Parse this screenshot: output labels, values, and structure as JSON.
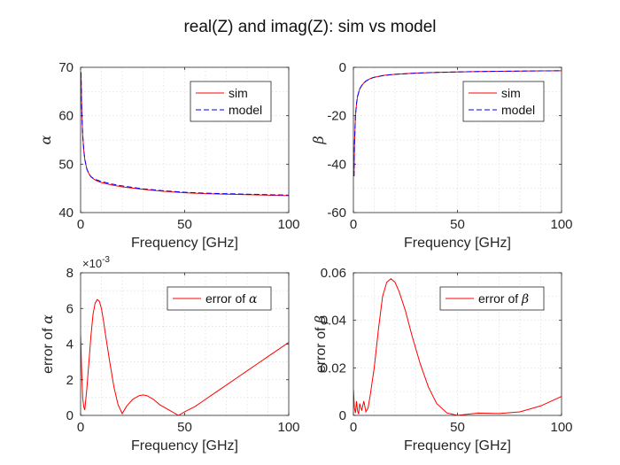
{
  "figure": {
    "title": "real(Z) and imag(Z): sim vs model",
    "colors": {
      "sim": "#ff0000",
      "model": "#0000ff",
      "error": "#ff0000",
      "grid": "#dcdcdc",
      "axis": "#262626"
    }
  },
  "chart_data": [
    {
      "id": "alpha",
      "type": "line",
      "xlabel": "Frequency [GHz]",
      "ylabel": "α",
      "ylabel_prefix": "",
      "xlim": [
        0,
        100
      ],
      "ylim": [
        40,
        70
      ],
      "xticks": [
        0,
        50,
        100
      ],
      "yticks": [
        40,
        50,
        60,
        70
      ],
      "exponent_label": "",
      "grid": true,
      "legend_placement": "top-right",
      "series": [
        {
          "name": "sim",
          "color": "#ff0000",
          "dash": "solid",
          "x": [
            0.2,
            0.5,
            1,
            1.5,
            2,
            3,
            4,
            5,
            6,
            8,
            10,
            15,
            20,
            30,
            40,
            50,
            60,
            70,
            80,
            90,
            100
          ],
          "y": [
            69,
            62,
            56,
            53,
            51,
            49,
            48,
            47.4,
            47,
            46.5,
            46.2,
            45.7,
            45.3,
            44.8,
            44.4,
            44.1,
            43.9,
            43.8,
            43.7,
            43.6,
            43.5
          ]
        },
        {
          "name": "model",
          "color": "#0000ff",
          "dash": "dashed",
          "x": [
            0.2,
            0.5,
            1,
            1.5,
            2,
            3,
            4,
            5,
            6,
            8,
            10,
            15,
            20,
            30,
            40,
            50,
            60,
            70,
            80,
            90,
            100
          ],
          "y": [
            69,
            62,
            56,
            53,
            51,
            49,
            48,
            47.4,
            47.1,
            46.7,
            46.4,
            45.9,
            45.5,
            44.9,
            44.5,
            44.2,
            44.0,
            43.9,
            43.8,
            43.7,
            43.6
          ]
        }
      ]
    },
    {
      "id": "beta",
      "type": "line",
      "xlabel": "Frequency [GHz]",
      "ylabel": "β",
      "ylabel_prefix": "",
      "xlim": [
        0,
        100
      ],
      "ylim": [
        -60,
        0
      ],
      "xticks": [
        0,
        50,
        100
      ],
      "yticks": [
        -60,
        -40,
        -20,
        0
      ],
      "exponent_label": "",
      "grid": true,
      "legend_placement": "top-right",
      "series": [
        {
          "name": "sim",
          "color": "#ff0000",
          "dash": "solid",
          "x": [
            0.3,
            0.5,
            1,
            1.5,
            2,
            3,
            4,
            5,
            6,
            8,
            10,
            15,
            20,
            30,
            40,
            50,
            60,
            70,
            80,
            90,
            100
          ],
          "y": [
            -45,
            -32,
            -20,
            -15,
            -12,
            -9,
            -7.5,
            -6.5,
            -5.7,
            -4.7,
            -4.1,
            -3.3,
            -2.9,
            -2.4,
            -2.1,
            -1.9,
            -1.75,
            -1.65,
            -1.55,
            -1.48,
            -1.4
          ]
        },
        {
          "name": "model",
          "color": "#0000ff",
          "dash": "dashed",
          "x": [
            0.3,
            0.5,
            1,
            1.5,
            2,
            3,
            4,
            5,
            6,
            8,
            10,
            15,
            20,
            30,
            40,
            50,
            60,
            70,
            80,
            90,
            100
          ],
          "y": [
            -45,
            -32,
            -20,
            -15,
            -12,
            -9,
            -7.5,
            -6.5,
            -5.7,
            -4.7,
            -4.1,
            -3.3,
            -2.9,
            -2.4,
            -2.1,
            -1.9,
            -1.75,
            -1.65,
            -1.55,
            -1.48,
            -1.4
          ]
        }
      ]
    },
    {
      "id": "error-alpha",
      "type": "line",
      "xlabel": "Frequency [GHz]",
      "ylabel": "α",
      "ylabel_prefix": "error of ",
      "xlim": [
        0,
        100
      ],
      "ylim": [
        0,
        0.008
      ],
      "xticks": [
        0,
        50,
        100
      ],
      "yticks": [
        0,
        0.002,
        0.004,
        0.006,
        0.008
      ],
      "ytick_labels": [
        "0",
        "2",
        "4",
        "6",
        "8"
      ],
      "exponent_label": "×10",
      "exponent_power": "-3",
      "grid": true,
      "legend_placement": "top-right",
      "series": [
        {
          "name": "error of α",
          "color": "#ff0000",
          "dash": "solid",
          "x": [
            0,
            0.5,
            1,
            1.5,
            2,
            3,
            4,
            5,
            6,
            7,
            8,
            9,
            10,
            11,
            12,
            14,
            16,
            18,
            20,
            22,
            25,
            28,
            30,
            32,
            35,
            38,
            41,
            44,
            47,
            50,
            55,
            60,
            65,
            70,
            75,
            80,
            85,
            90,
            95,
            100
          ],
          "y": [
            0.0045,
            0.0025,
            0.001,
            0.0005,
            0.0003,
            0.0015,
            0.003,
            0.0045,
            0.0057,
            0.0063,
            0.0065,
            0.0064,
            0.006,
            0.0053,
            0.0045,
            0.003,
            0.0016,
            0.0006,
            0.0001,
            0.0005,
            0.0009,
            0.0011,
            0.00115,
            0.0011,
            0.0009,
            0.0006,
            0.0004,
            0.0002,
            0.0,
            0.0002,
            0.0005,
            0.0009,
            0.0013,
            0.0017,
            0.0021,
            0.0025,
            0.0029,
            0.0033,
            0.0037,
            0.0041
          ]
        }
      ]
    },
    {
      "id": "error-beta",
      "type": "line",
      "xlabel": "Frequency [GHz]",
      "ylabel": "β",
      "ylabel_prefix": "error of ",
      "xlim": [
        0,
        100
      ],
      "ylim": [
        0,
        0.06
      ],
      "xticks": [
        0,
        50,
        100
      ],
      "yticks": [
        0,
        0.02,
        0.04,
        0.06
      ],
      "ytick_labels": [
        "0",
        "0.02",
        "0.04",
        "0.06"
      ],
      "exponent_label": "",
      "grid": true,
      "legend_placement": "top-right",
      "series": [
        {
          "name": "error of β",
          "color": "#ff0000",
          "dash": "solid",
          "x": [
            0,
            0.5,
            1,
            1.5,
            2,
            2.5,
            3,
            4,
            5,
            6,
            7,
            8,
            10,
            12,
            14,
            16,
            18,
            20,
            22,
            25,
            28,
            32,
            36,
            40,
            45,
            50,
            55,
            60,
            70,
            80,
            90,
            100
          ],
          "y": [
            0.011,
            0.003,
            0.001,
            0.006,
            0.002,
            0.0005,
            0.005,
            0.002,
            0.006,
            0.0015,
            0.003,
            0.008,
            0.02,
            0.036,
            0.05,
            0.056,
            0.0575,
            0.056,
            0.052,
            0.044,
            0.034,
            0.022,
            0.012,
            0.005,
            0.001,
            0.0,
            0.0005,
            0.001,
            0.0008,
            0.0015,
            0.004,
            0.008
          ]
        }
      ]
    }
  ]
}
